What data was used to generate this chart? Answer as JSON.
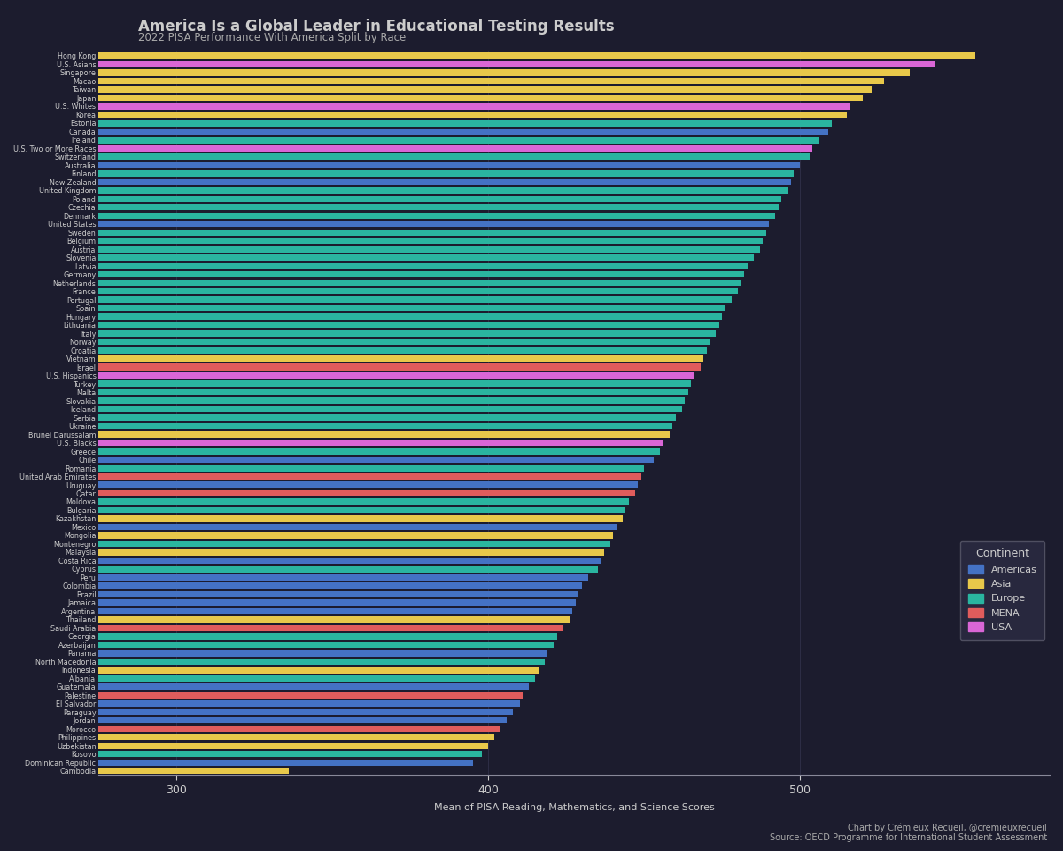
{
  "title": "America Is a Global Leader in Educational Testing Results",
  "subtitle": "2022 PISA Performance With America Split by Race",
  "xlabel": "Mean of PISA Reading, Mathematics, and Science Scores",
  "footnote1": "Chart by Crémieux Recueil, @cremieuxrecueil",
  "footnote2": "Source: OECD Programme for International Student Assessment",
  "bg_color": "#1c1c2e",
  "text_color": "#cccccc",
  "xlim_left": 275,
  "xlim_right": 580,
  "xticks": [
    300,
    400,
    500
  ],
  "legend_title": "Continent",
  "legend_entries": [
    "Americas",
    "Asia",
    "Europe",
    "MENA",
    "USA"
  ],
  "legend_colors": [
    "#4472c4",
    "#e8c84a",
    "#2ab5a0",
    "#e05c5c",
    "#d966d6"
  ],
  "countries": [
    "Hong Kong",
    "U.S. Asians",
    "Singapore",
    "Macao",
    "Taiwan",
    "Japan",
    "U.S. Whites",
    "Korea",
    "Estonia",
    "Canada",
    "Ireland",
    "U.S. Two or More Races",
    "Switzerland",
    "Australia",
    "Finland",
    "New Zealand",
    "United Kingdom",
    "Poland",
    "Czechia",
    "Denmark",
    "United States",
    "Sweden",
    "Belgium",
    "Austria",
    "Slovenia",
    "Latvia",
    "Germany",
    "Netherlands",
    "France",
    "Portugal",
    "Spain",
    "Hungary",
    "Lithuania",
    "Italy",
    "Norway",
    "Croatia",
    "Vietnam",
    "Israel",
    "U.S. Hispanics",
    "Turkey",
    "Malta",
    "Slovakia",
    "Iceland",
    "Serbia",
    "Ukraine",
    "Brunei Darussalam",
    "U.S. Blacks",
    "Greece",
    "Chile",
    "Romania",
    "United Arab Emirates",
    "Uruguay",
    "Qatar",
    "Moldova",
    "Bulgaria",
    "Kazakhstan",
    "Mexico",
    "Mongolia",
    "Montenegro",
    "Malaysia",
    "Costa Rica",
    "Cyprus",
    "Peru",
    "Colombia",
    "Brazil",
    "Jamaica",
    "Argentina",
    "Thailand",
    "Saudi Arabia",
    "Georgia",
    "Azerbaijan",
    "Panama",
    "North Macedonia",
    "Indonesia",
    "Albania",
    "Guatemala",
    "Palestine",
    "El Salvador",
    "Paraguay",
    "Jordan",
    "Morocco",
    "Philippines",
    "Uzbekistan",
    "Kosovo",
    "Dominican Republic",
    "Cambodia"
  ],
  "values": [
    556,
    543,
    535,
    527,
    523,
    520,
    516,
    515,
    510,
    509,
    506,
    504,
    503,
    500,
    498,
    497,
    496,
    494,
    493,
    492,
    490,
    489,
    488,
    487,
    485,
    483,
    482,
    481,
    480,
    478,
    476,
    475,
    474,
    473,
    471,
    470,
    469,
    468,
    466,
    465,
    464,
    463,
    462,
    460,
    459,
    458,
    456,
    455,
    453,
    450,
    449,
    448,
    447,
    445,
    444,
    443,
    441,
    440,
    439,
    437,
    436,
    435,
    432,
    430,
    429,
    428,
    427,
    426,
    424,
    422,
    421,
    419,
    418,
    416,
    415,
    413,
    411,
    410,
    408,
    406,
    404,
    402,
    400,
    398,
    395,
    336
  ],
  "colors": [
    "#e8c84a",
    "#d966d6",
    "#e8c84a",
    "#e8c84a",
    "#e8c84a",
    "#e8c84a",
    "#d966d6",
    "#e8c84a",
    "#2ab5a0",
    "#4472c4",
    "#2ab5a0",
    "#d966d6",
    "#2ab5a0",
    "#4472c4",
    "#2ab5a0",
    "#4472c4",
    "#2ab5a0",
    "#2ab5a0",
    "#2ab5a0",
    "#2ab5a0",
    "#4472c4",
    "#2ab5a0",
    "#2ab5a0",
    "#2ab5a0",
    "#2ab5a0",
    "#2ab5a0",
    "#2ab5a0",
    "#2ab5a0",
    "#2ab5a0",
    "#2ab5a0",
    "#2ab5a0",
    "#2ab5a0",
    "#2ab5a0",
    "#2ab5a0",
    "#2ab5a0",
    "#2ab5a0",
    "#e8c84a",
    "#e05c5c",
    "#d966d6",
    "#2ab5a0",
    "#2ab5a0",
    "#2ab5a0",
    "#2ab5a0",
    "#2ab5a0",
    "#2ab5a0",
    "#e8c84a",
    "#d966d6",
    "#2ab5a0",
    "#4472c4",
    "#2ab5a0",
    "#e05c5c",
    "#4472c4",
    "#e05c5c",
    "#2ab5a0",
    "#2ab5a0",
    "#e8c84a",
    "#4472c4",
    "#e8c84a",
    "#2ab5a0",
    "#e8c84a",
    "#4472c4",
    "#2ab5a0",
    "#4472c4",
    "#4472c4",
    "#4472c4",
    "#4472c4",
    "#4472c4",
    "#e8c84a",
    "#e05c5c",
    "#2ab5a0",
    "#2ab5a0",
    "#4472c4",
    "#2ab5a0",
    "#e8c84a",
    "#2ab5a0",
    "#4472c4",
    "#e05c5c",
    "#4472c4",
    "#4472c4",
    "#4472c4",
    "#e05c5c",
    "#e8c84a",
    "#e8c84a",
    "#2ab5a0",
    "#4472c4",
    "#e8c84a"
  ]
}
